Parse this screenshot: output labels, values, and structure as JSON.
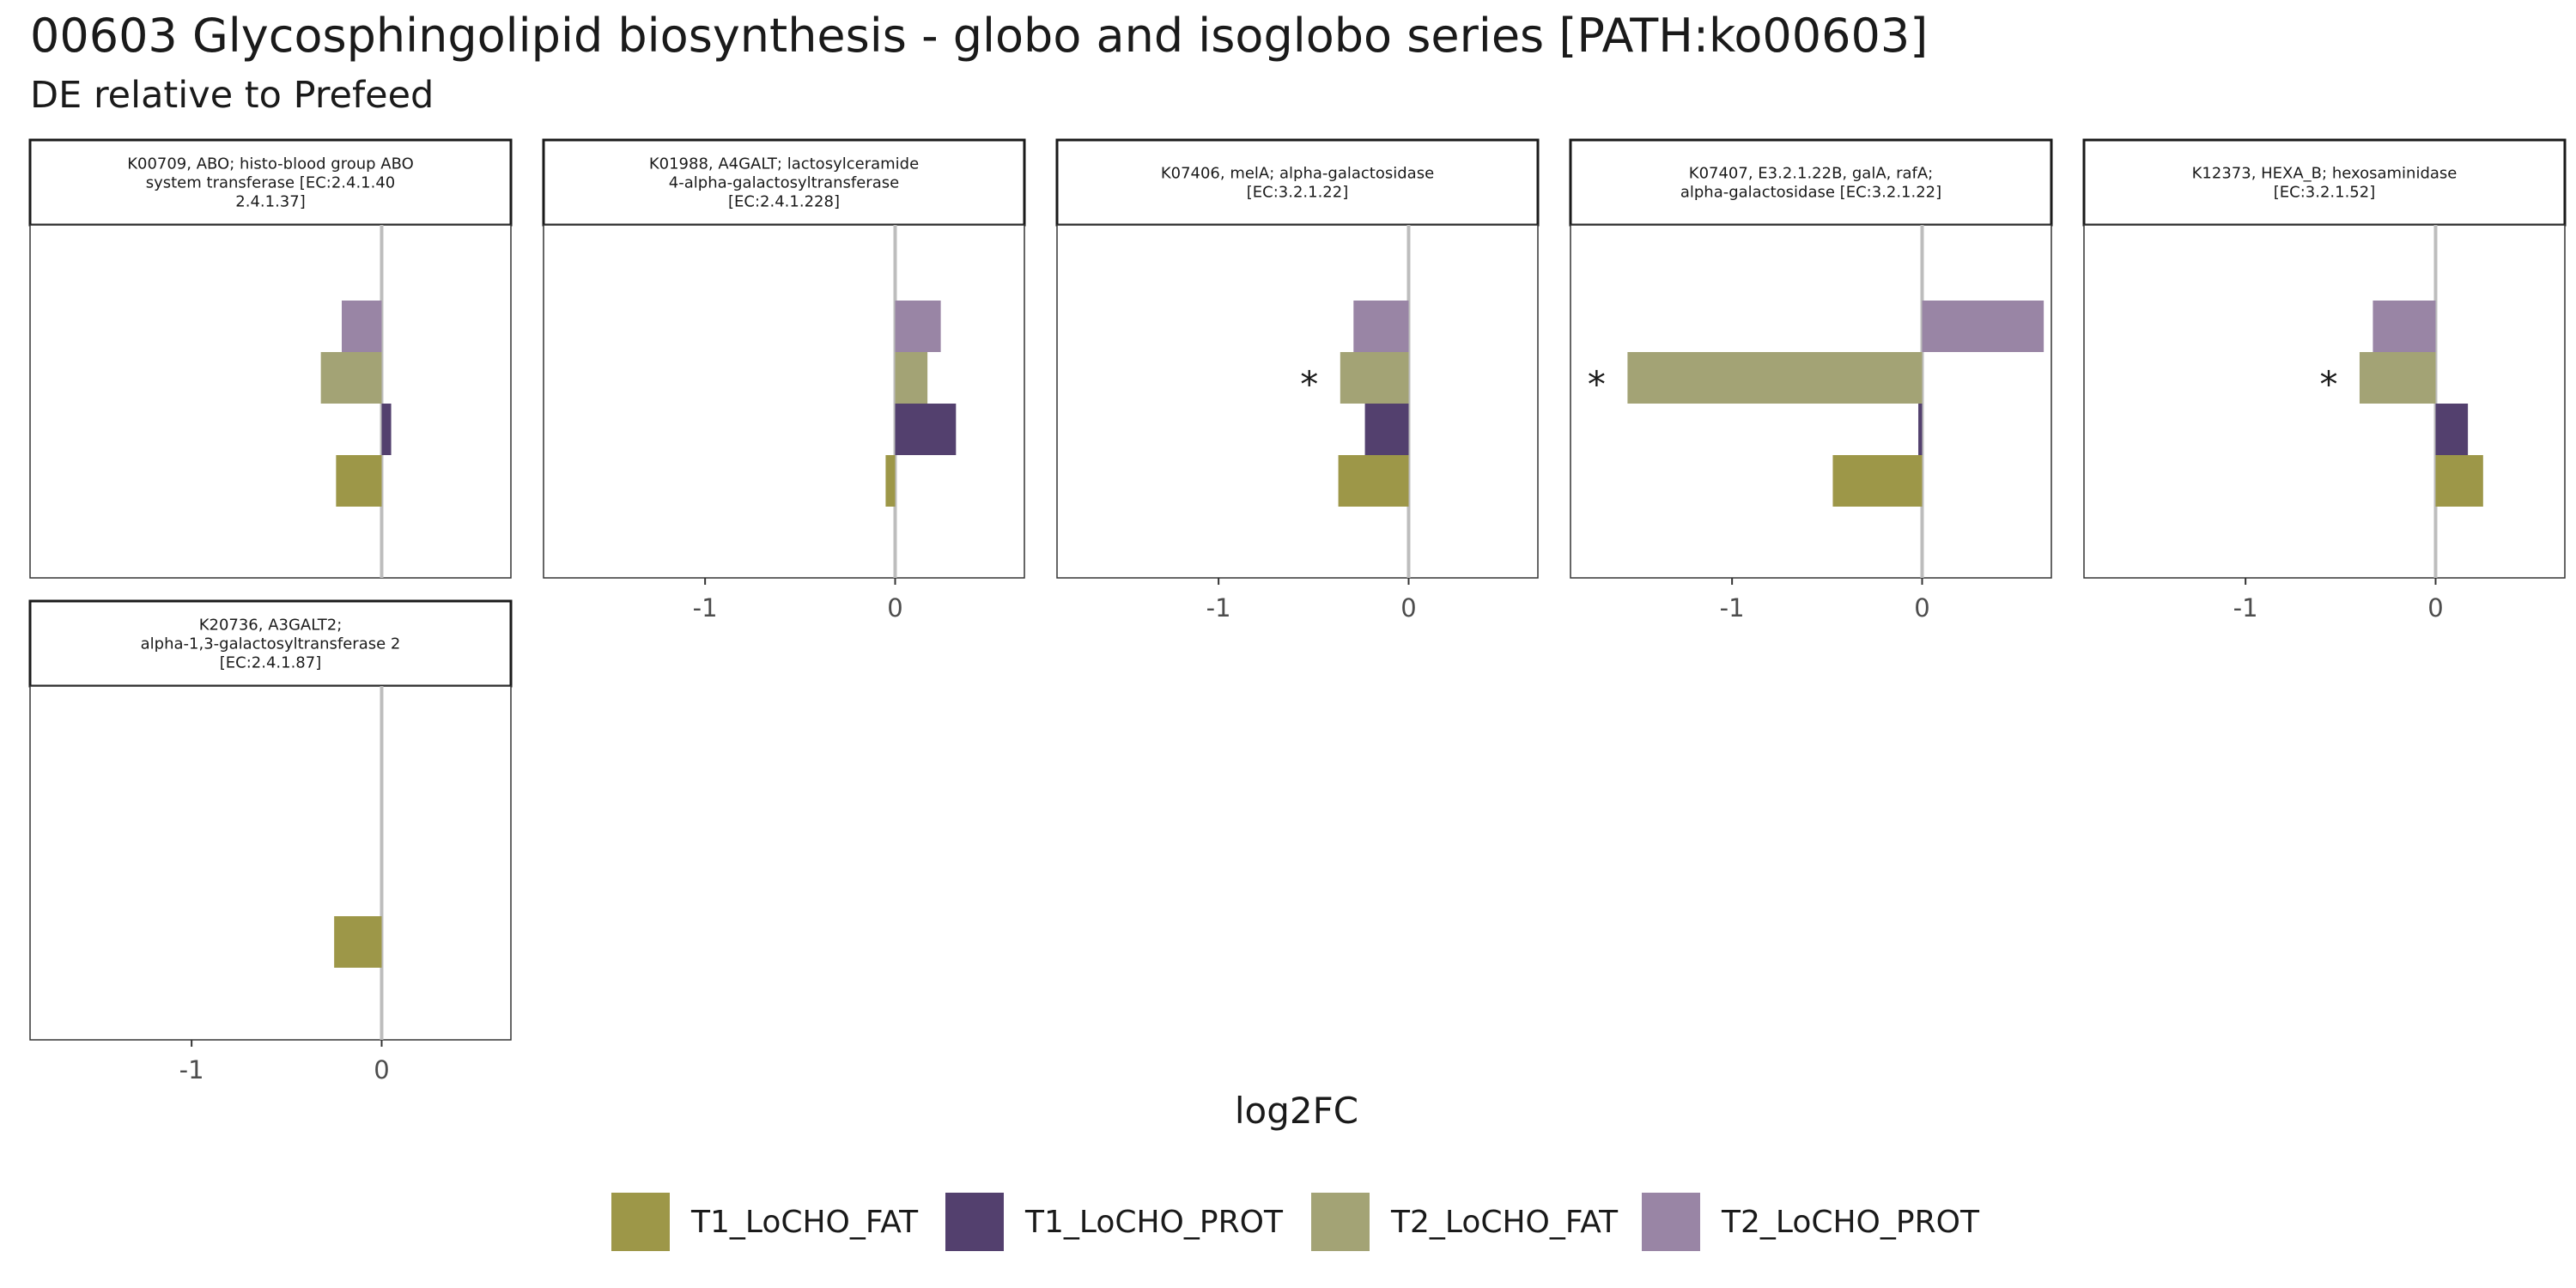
{
  "title": "00603 Glycosphingolipid biosynthesis - globo and isoglobo series [PATH:ko00603]",
  "subtitle": "DE relative to Prefeed",
  "chart_data": {
    "type": "bar",
    "orientation": "horizontal",
    "facet": true,
    "xlabel": "log2FC",
    "ylabel": "",
    "xlim": [
      -1.85,
      0.68
    ],
    "xticks": [
      -1,
      0
    ],
    "zero_line": true,
    "grid": false,
    "legend_position": "bottom",
    "series": [
      {
        "name": "T1_LoCHO_FAT",
        "color": "#9D9748"
      },
      {
        "name": "T1_LoCHO_PROT",
        "color": "#53406E"
      },
      {
        "name": "T2_LoCHO_FAT",
        "color": "#A3A375"
      },
      {
        "name": "T2_LoCHO_PROT",
        "color": "#9985A5"
      }
    ],
    "panels": [
      {
        "strip": [
          "K00709, ABO; histo-blood group ABO",
          "system transferase [EC:2.4.1.40",
          "2.4.1.37]"
        ],
        "values": {
          "T1_LoCHO_FAT": -0.24,
          "T1_LoCHO_PROT": 0.05,
          "T2_LoCHO_FAT": -0.32,
          "T2_LoCHO_PROT": -0.21
        },
        "significant": {
          "T2_LoCHO_FAT": false
        },
        "show_x_axis": false
      },
      {
        "strip": [
          "K01988, A4GALT; lactosylceramide",
          "4-alpha-galactosyltransferase",
          "[EC:2.4.1.228]"
        ],
        "values": {
          "T1_LoCHO_FAT": -0.05,
          "T1_LoCHO_PROT": 0.32,
          "T2_LoCHO_FAT": 0.17,
          "T2_LoCHO_PROT": 0.24
        },
        "significant": {
          "T2_LoCHO_FAT": false
        },
        "show_x_axis": true
      },
      {
        "strip": [
          "K07406, melA; alpha-galactosidase",
          "[EC:3.2.1.22]"
        ],
        "values": {
          "T1_LoCHO_FAT": -0.37,
          "T1_LoCHO_PROT": -0.23,
          "T2_LoCHO_FAT": -0.36,
          "T2_LoCHO_PROT": -0.29
        },
        "significant": {
          "T2_LoCHO_FAT": true
        },
        "show_x_axis": true
      },
      {
        "strip": [
          "K07407, E3.2.1.22B, galA, rafA;",
          "alpha-galactosidase [EC:3.2.1.22]"
        ],
        "values": {
          "T1_LoCHO_FAT": -0.47,
          "T1_LoCHO_PROT": -0.02,
          "T2_LoCHO_FAT": -1.55,
          "T2_LoCHO_PROT": 0.64
        },
        "significant": {
          "T2_LoCHO_FAT": true
        },
        "show_x_axis": true
      },
      {
        "strip": [
          "K12373, HEXA_B; hexosaminidase",
          "[EC:3.2.1.52]"
        ],
        "values": {
          "T1_LoCHO_FAT": 0.25,
          "T1_LoCHO_PROT": 0.17,
          "T2_LoCHO_FAT": -0.4,
          "T2_LoCHO_PROT": -0.33
        },
        "significant": {
          "T2_LoCHO_FAT": true
        },
        "show_x_axis": true
      },
      {
        "strip": [
          "K20736, A3GALT2;",
          "alpha-1,3-galactosyltransferase 2",
          "[EC:2.4.1.87]"
        ],
        "values": {
          "T1_LoCHO_FAT": -0.25
        },
        "significant": {},
        "show_x_axis": true
      }
    ],
    "significance_marker": "*"
  }
}
